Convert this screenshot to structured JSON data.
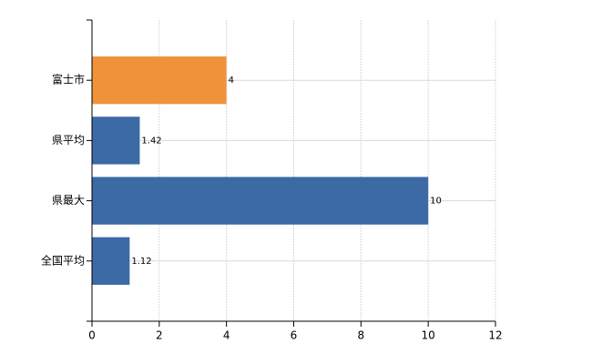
{
  "chart_data": {
    "type": "hbar",
    "categories": [
      "富士市",
      "県平均",
      "県最大",
      "全国平均"
    ],
    "values": [
      4,
      1.42,
      10,
      1.12
    ],
    "colors": [
      "#f0923a",
      "#3b6aa5",
      "#3b6aa5",
      "#3b6aa5"
    ],
    "xlim": [
      0,
      12
    ],
    "xticks": [
      0,
      2,
      4,
      6,
      8,
      10,
      12
    ],
    "grid": true
  }
}
